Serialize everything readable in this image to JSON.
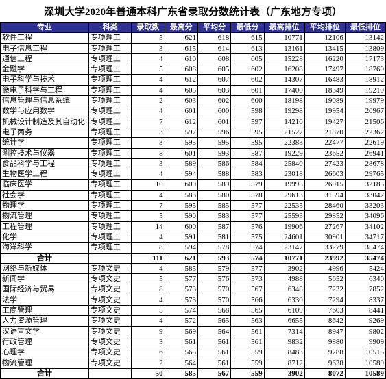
{
  "title": "深圳大学2020年普通本科广东省录取分数统计表（广东地方专项）",
  "columns": [
    "专业",
    "科类",
    "录取数",
    "最高分",
    "平均分",
    "最低分",
    "最高排位",
    "平均排位",
    "最低排位"
  ],
  "totalLabel": "合计",
  "science": {
    "cat": "专项理工",
    "rows": [
      [
        "软件工程",
        5,
        621,
        618,
        615,
        10771,
        12106,
        13142
      ],
      [
        "电子信息工程",
        3,
        615,
        614,
        613,
        13161,
        13415,
        13809
      ],
      [
        "通信工程",
        4,
        610,
        608,
        605,
        15228,
        16220,
        17173
      ],
      [
        "金融学",
        5,
        608,
        605,
        602,
        16208,
        17497,
        18769
      ],
      [
        "电子科学与技术",
        4,
        612,
        607,
        602,
        14307,
        16483,
        18912
      ],
      [
        "微电子科学与工程",
        4,
        605,
        603,
        601,
        17400,
        18349,
        19219
      ],
      [
        "信息管理与信息系统",
        2,
        603,
        602,
        600,
        18198,
        19089,
        19979
      ],
      [
        "数学与应用数学",
        4,
        601,
        600,
        598,
        19298,
        19954,
        20967
      ],
      [
        "机械设计制造及其自动化",
        7,
        612,
        601,
        597,
        14210,
        19427,
        21506
      ],
      [
        "电子商务",
        3,
        597,
        596,
        595,
        21527,
        21870,
        22362
      ],
      [
        "统计学",
        3,
        595,
        595,
        595,
        22383,
        22477,
        22619
      ],
      [
        "测控技术与仪器",
        8,
        601,
        593,
        587,
        19229,
        23652,
        26941
      ],
      [
        "食品科学与工程",
        3,
        589,
        586,
        584,
        25840,
        27423,
        28678
      ],
      [
        "生物医学工程",
        4,
        594,
        588,
        583,
        23018,
        26603,
        29765
      ],
      [
        "临床医学",
        10,
        600,
        589,
        579,
        19995,
        26015,
        32185
      ],
      [
        "社会学",
        4,
        583,
        580,
        578,
        29613,
        31594,
        33042
      ],
      [
        "物理学",
        7,
        595,
        585,
        577,
        22535,
        28460,
        33203
      ],
      [
        "物流管理",
        5,
        590,
        583,
        577,
        25593,
        29852,
        34096
      ],
      [
        "工程管理",
        14,
        600,
        587,
        576,
        19906,
        27267,
        34102
      ],
      [
        "化学",
        4,
        591,
        581,
        575,
        24601,
        30901,
        34717
      ],
      [
        "海洋科学",
        8,
        594,
        578,
        574,
        23147,
        33279,
        35474
      ]
    ],
    "total": [
      111,
      621,
      593,
      574,
      10771,
      23992,
      35474
    ]
  },
  "arts": {
    "cat": "专项文史",
    "rows": [
      [
        "网络与新媒体",
        4,
        585,
        579,
        577,
        3902,
        4996,
        5424
      ],
      [
        "新闻学",
        5,
        577,
        576,
        573,
        4988,
        5652,
        6340
      ],
      [
        "国际经济与贸易",
        8,
        573,
        570,
        567,
        6348,
        7232,
        7852
      ],
      [
        "法学",
        4,
        573,
        570,
        566,
        6330,
        7294,
        8337
      ],
      [
        "工商管理",
        5,
        574,
        568,
        565,
        6109,
        7603,
        8441
      ],
      [
        "人力资源管理",
        4,
        572,
        565,
        563,
        6655,
        8642,
        9269
      ],
      [
        "汉语言文学",
        9,
        569,
        564,
        561,
        7314,
        8947,
        9802
      ],
      [
        "行政管理",
        3,
        561,
        561,
        561,
        9832,
        9880,
        9909
      ],
      [
        "心理学",
        6,
        565,
        561,
        559,
        8483,
        9788,
        10515
      ],
      [
        "物流管理",
        2,
        564,
        561,
        559,
        8712,
        9638,
        10589
      ]
    ],
    "total": [
      50,
      585,
      567,
      559,
      3902,
      8072,
      10589
    ]
  }
}
